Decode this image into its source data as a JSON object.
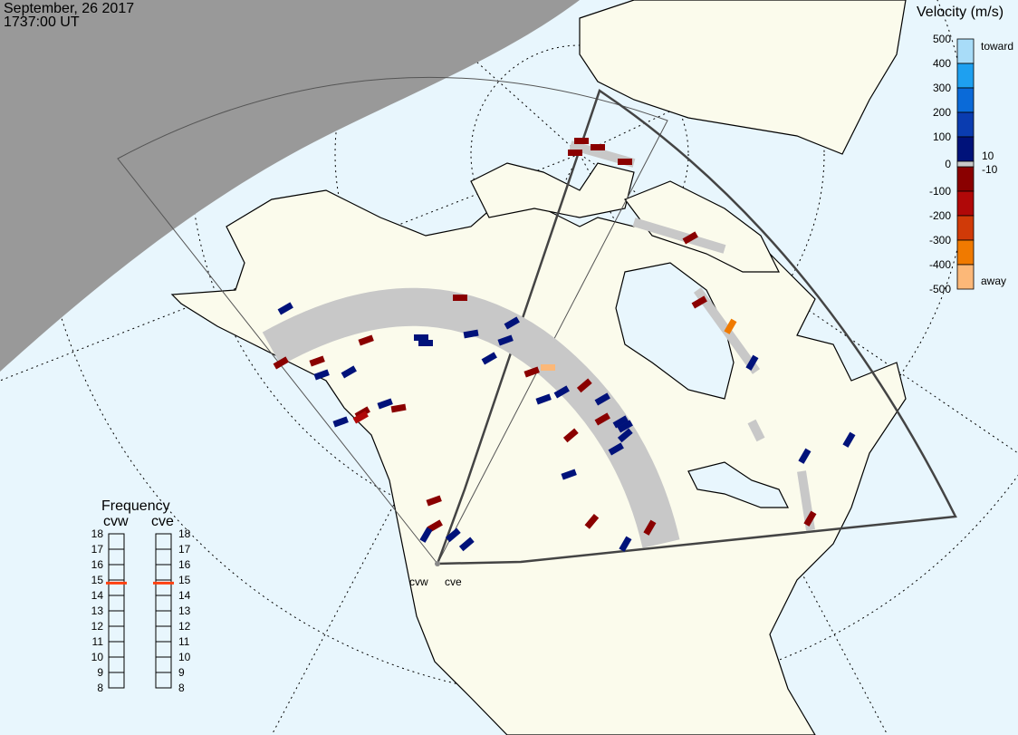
{
  "header": {
    "date": "September, 26 2017",
    "time": "1737:00 UT"
  },
  "colorbar": {
    "title": "Velocity (m/s)",
    "ticks": [
      "500",
      "400",
      "300",
      "200",
      "100",
      "0",
      "-100",
      "-200",
      "-300",
      "-400",
      "-500"
    ],
    "toward_label": "toward",
    "away_label": "away",
    "ground_scatter_upper": "10",
    "ground_scatter_lower": "-10",
    "colors": [
      "#a8dcf8",
      "#1ea0f0",
      "#0a6ad8",
      "#0a3cb0",
      "#00127a",
      "#8a0000",
      "#b00808",
      "#d03a08",
      "#f07a00",
      "#fcb878"
    ],
    "ground_scatter_color": "#c8c8c8"
  },
  "frequency": {
    "title": "Frequency",
    "unit_range": [
      8,
      18
    ],
    "ticks": [
      "18",
      "17",
      "16",
      "15",
      "14",
      "13",
      "12",
      "11",
      "10",
      "9",
      "8"
    ],
    "radars": [
      {
        "name": "cvw",
        "value_mhz": 14.8
      },
      {
        "name": "cve",
        "value_mhz": 14.8
      }
    ],
    "marker_color": "#ff4010"
  },
  "radars": [
    {
      "name": "cvw"
    },
    {
      "name": "cve"
    }
  ],
  "colors": {
    "ocean": "#e8f6fd",
    "land": "#fbfbec",
    "night": "#999999",
    "ground_scatter": "#c8c8c8"
  }
}
